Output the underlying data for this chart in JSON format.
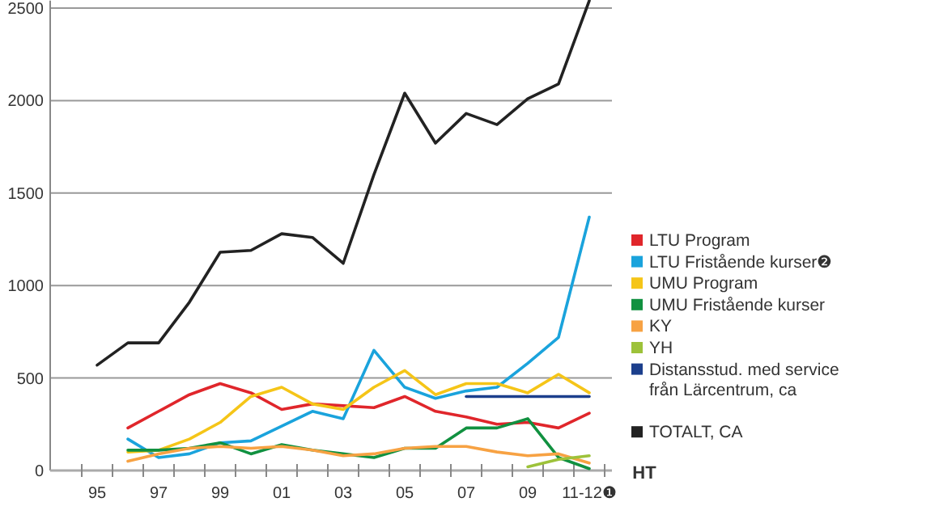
{
  "chart_data": {
    "type": "line",
    "xlabel": "HT",
    "categories": [
      "95",
      null,
      "97",
      null,
      "99",
      null,
      "01",
      null,
      "03",
      null,
      "05",
      null,
      "07",
      null,
      "09",
      null,
      "11-12❶"
    ],
    "ylim": [
      0,
      2540
    ],
    "yticks": [
      0,
      500,
      1000,
      1500,
      2000,
      2500
    ],
    "grid": "y",
    "legend": "right",
    "marker": "none",
    "line_style": "solid",
    "series": [
      {
        "name": "LTU Program",
        "color": "#e0262b",
        "values": [
          null,
          230,
          320,
          410,
          470,
          420,
          330,
          360,
          350,
          340,
          400,
          320,
          290,
          250,
          260,
          230,
          310
        ]
      },
      {
        "name": "LTU Fristående kurser❷",
        "color": "#1aa3dc",
        "values": [
          null,
          170,
          70,
          90,
          150,
          160,
          240,
          320,
          280,
          650,
          450,
          390,
          430,
          450,
          580,
          720,
          1370
        ]
      },
      {
        "name": "UMU Program",
        "color": "#f5c518",
        "values": [
          null,
          100,
          110,
          170,
          260,
          400,
          450,
          360,
          330,
          450,
          540,
          410,
          470,
          470,
          420,
          520,
          420
        ]
      },
      {
        "name": "UMU Fristående kurser",
        "color": "#119140",
        "values": [
          null,
          110,
          110,
          120,
          150,
          90,
          140,
          110,
          90,
          70,
          120,
          120,
          230,
          230,
          280,
          70,
          10
        ]
      },
      {
        "name": "KY",
        "color": "#f7a243",
        "values": [
          null,
          50,
          90,
          120,
          130,
          120,
          130,
          110,
          80,
          90,
          120,
          130,
          130,
          100,
          80,
          90,
          40
        ]
      },
      {
        "name": "YH",
        "color": "#9dc23a",
        "values": [
          null,
          null,
          null,
          null,
          null,
          null,
          null,
          null,
          null,
          null,
          null,
          null,
          null,
          null,
          20,
          60,
          80
        ]
      },
      {
        "name": "Distansstud. med service från Lärcentrum, ca",
        "color": "#1c3f8c",
        "values": [
          null,
          null,
          null,
          null,
          null,
          null,
          null,
          null,
          null,
          null,
          null,
          null,
          400,
          400,
          400,
          400,
          400
        ]
      },
      {
        "name": "TOTALT, CA",
        "color": "#222222",
        "values": [
          570,
          690,
          690,
          910,
          1180,
          1190,
          1280,
          1260,
          1120,
          1600,
          2040,
          1770,
          1930,
          1870,
          2010,
          2090,
          2540
        ]
      }
    ]
  }
}
